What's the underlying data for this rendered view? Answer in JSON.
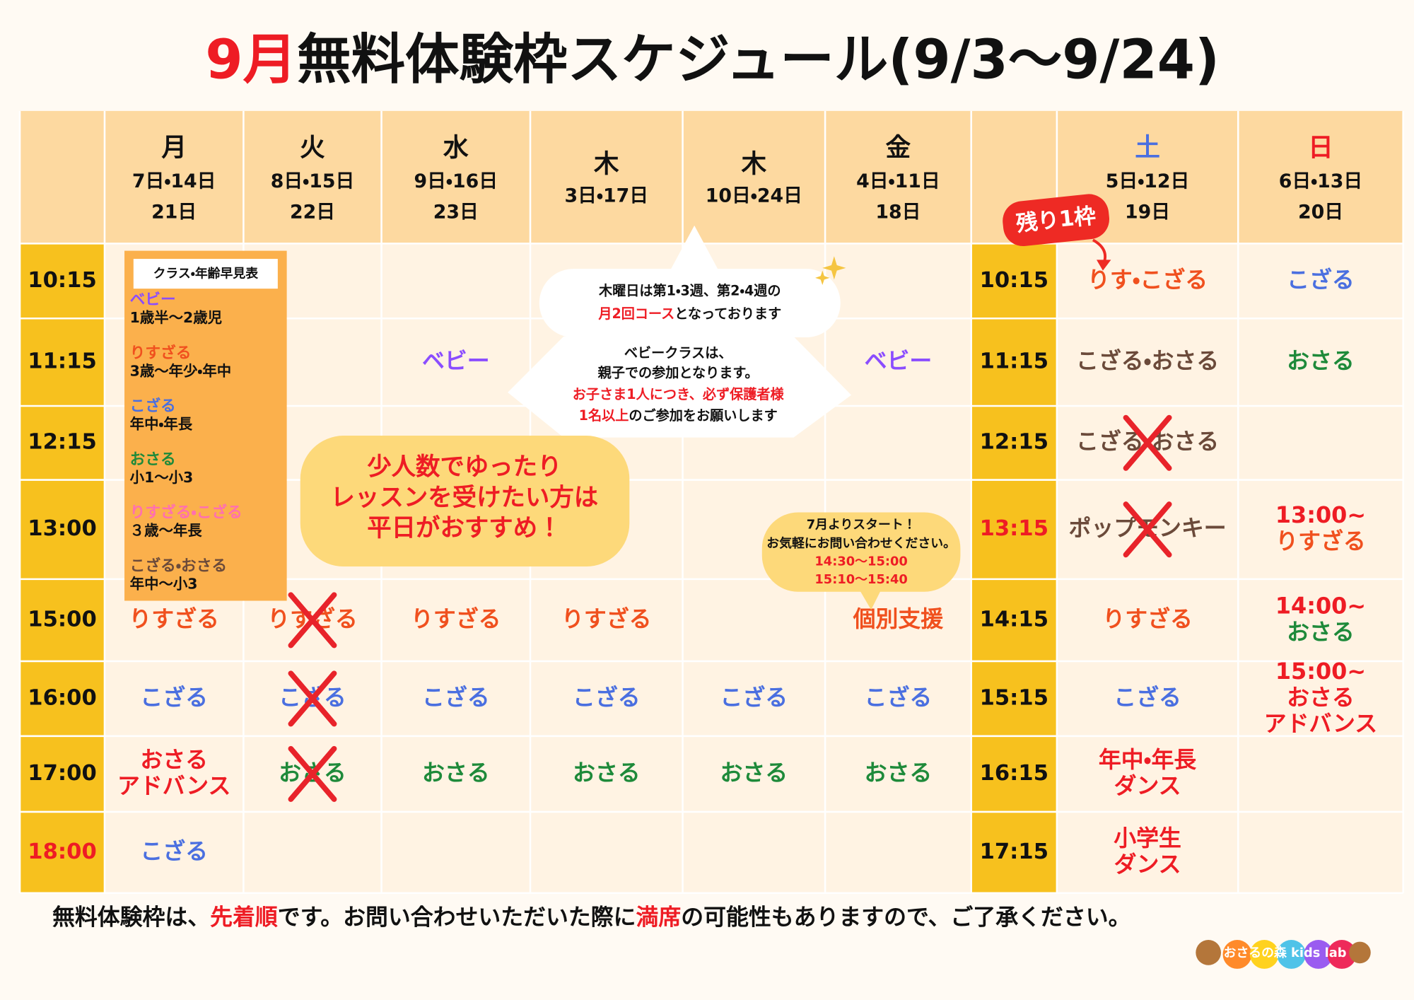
{
  "title": {
    "month": "9月",
    "rest": "無料体験枠スケジュール(9/3〜9/24)"
  },
  "days": [
    {
      "name": "月",
      "color": "#111111",
      "dates": [
        "7日・14日",
        "21日"
      ]
    },
    {
      "name": "火",
      "color": "#111111",
      "dates": [
        "8日・15日",
        "22日"
      ]
    },
    {
      "name": "水",
      "color": "#111111",
      "dates": [
        "9日・16日",
        "23日"
      ]
    },
    {
      "name": "木",
      "color": "#111111",
      "dates": [
        "3日・17日"
      ]
    },
    {
      "name": "木",
      "color": "#111111",
      "dates": [
        "10日・24日"
      ]
    },
    {
      "name": "金",
      "color": "#111111",
      "dates": [
        "4日・11日",
        "18日"
      ]
    },
    {
      "name": "土",
      "color": "#4a6fe0",
      "dates": [
        "5日・12日",
        "19日"
      ]
    },
    {
      "name": "日",
      "color": "#ee1c24",
      "dates": [
        "6日・13日",
        "20日"
      ]
    }
  ],
  "rows": [
    {
      "left_time": {
        "text": "10:15",
        "color": "#111111"
      },
      "right_time": {
        "text": "10:15",
        "color": "#111111"
      },
      "cells": [
        null,
        null,
        null,
        null,
        null,
        null,
        {
          "lines": [
            {
              "text": "りす・こざる",
              "color": "#f0501e"
            }
          ],
          "cancelled": false
        },
        {
          "lines": [
            {
              "text": "こざる",
              "color": "#4a6fe0"
            }
          ],
          "cancelled": false
        }
      ]
    },
    {
      "left_time": {
        "text": "11:15",
        "color": "#111111"
      },
      "right_time": {
        "text": "11:15",
        "color": "#111111"
      },
      "cells": [
        null,
        null,
        {
          "lines": [
            {
              "text": "ベビー",
              "color": "#8b4dff"
            }
          ],
          "cancelled": false
        },
        null,
        null,
        {
          "lines": [
            {
              "text": "ベビー",
              "color": "#8b4dff"
            }
          ],
          "cancelled": false
        },
        {
          "lines": [
            {
              "text": "こざる・おさる",
              "color": "#6b4a3a"
            }
          ],
          "cancelled": false
        },
        {
          "lines": [
            {
              "text": "おさる",
              "color": "#1e8a3a"
            }
          ],
          "cancelled": false
        }
      ]
    },
    {
      "left_time": {
        "text": "12:15",
        "color": "#111111"
      },
      "right_time": {
        "text": "12:15",
        "color": "#111111"
      },
      "cells": [
        null,
        null,
        null,
        null,
        null,
        null,
        {
          "lines": [
            {
              "text": "こざる・おさる",
              "color": "#6b4a3a"
            }
          ],
          "cancelled": true
        },
        null
      ]
    },
    {
      "left_time": {
        "text": "13:00",
        "color": "#111111"
      },
      "right_time": {
        "text": "13:15",
        "color": "#ee1c24"
      },
      "cells": [
        null,
        null,
        null,
        null,
        null,
        null,
        {
          "lines": [
            {
              "text": "ポップモンキー",
              "color": "#6b4a3a"
            }
          ],
          "cancelled": true
        },
        {
          "lines": [
            {
              "text": "13:00~",
              "color": "#ee1c24"
            },
            {
              "text": "りすざる",
              "color": "#f0501e"
            }
          ],
          "cancelled": false
        }
      ]
    },
    {
      "left_time": {
        "text": "15:00",
        "color": "#111111"
      },
      "right_time": {
        "text": "14:15",
        "color": "#111111"
      },
      "cells": [
        {
          "lines": [
            {
              "text": "りすざる",
              "color": "#f0501e"
            }
          ],
          "cancelled": false
        },
        {
          "lines": [
            {
              "text": "りすざる",
              "color": "#f0501e"
            }
          ],
          "cancelled": true
        },
        {
          "lines": [
            {
              "text": "りすざる",
              "color": "#f0501e"
            }
          ],
          "cancelled": false
        },
        {
          "lines": [
            {
              "text": "りすざる",
              "color": "#f0501e"
            }
          ],
          "cancelled": false
        },
        null,
        {
          "lines": [
            {
              "text": "個別支援",
              "color": "#f0501e"
            }
          ],
          "cancelled": false
        },
        {
          "lines": [
            {
              "text": "りすざる",
              "color": "#f0501e"
            }
          ],
          "cancelled": false
        },
        {
          "lines": [
            {
              "text": "14:00~",
              "color": "#ee1c24"
            },
            {
              "text": "おさる",
              "color": "#1e8a3a"
            }
          ],
          "cancelled": false
        }
      ]
    },
    {
      "left_time": {
        "text": "16:00",
        "color": "#111111"
      },
      "right_time": {
        "text": "15:15",
        "color": "#111111"
      },
      "cells": [
        {
          "lines": [
            {
              "text": "こざる",
              "color": "#4a6fe0"
            }
          ],
          "cancelled": false
        },
        {
          "lines": [
            {
              "text": "こざる",
              "color": "#4a6fe0"
            }
          ],
          "cancelled": true
        },
        {
          "lines": [
            {
              "text": "こざる",
              "color": "#4a6fe0"
            }
          ],
          "cancelled": false
        },
        {
          "lines": [
            {
              "text": "こざる",
              "color": "#4a6fe0"
            }
          ],
          "cancelled": false
        },
        {
          "lines": [
            {
              "text": "こざる",
              "color": "#4a6fe0"
            }
          ],
          "cancelled": false
        },
        {
          "lines": [
            {
              "text": "こざる",
              "color": "#4a6fe0"
            }
          ],
          "cancelled": false
        },
        {
          "lines": [
            {
              "text": "こざる",
              "color": "#4a6fe0"
            }
          ],
          "cancelled": false
        },
        {
          "lines": [
            {
              "text": "15:00~",
              "color": "#ee1c24"
            },
            {
              "text": "おさる",
              "color": "#ee1c24"
            },
            {
              "text": "アドバンス",
              "color": "#ee1c24"
            }
          ],
          "cancelled": false
        }
      ]
    },
    {
      "left_time": {
        "text": "17:00",
        "color": "#111111"
      },
      "right_time": {
        "text": "16:15",
        "color": "#111111"
      },
      "cells": [
        {
          "lines": [
            {
              "text": "おさる",
              "color": "#ee1c24"
            },
            {
              "text": "アドバンス",
              "color": "#ee1c24"
            }
          ],
          "cancelled": false
        },
        {
          "lines": [
            {
              "text": "おさる",
              "color": "#1e8a3a"
            }
          ],
          "cancelled": true
        },
        {
          "lines": [
            {
              "text": "おさる",
              "color": "#1e8a3a"
            }
          ],
          "cancelled": false
        },
        {
          "lines": [
            {
              "text": "おさる",
              "color": "#1e8a3a"
            }
          ],
          "cancelled": false
        },
        {
          "lines": [
            {
              "text": "おさる",
              "color": "#1e8a3a"
            }
          ],
          "cancelled": false
        },
        {
          "lines": [
            {
              "text": "おさる",
              "color": "#1e8a3a"
            }
          ],
          "cancelled": false
        },
        {
          "lines": [
            {
              "text": "年中・年長",
              "color": "#ee1c24"
            },
            {
              "text": "ダンス",
              "color": "#ee1c24"
            }
          ],
          "cancelled": false
        },
        null
      ]
    },
    {
      "left_time": {
        "text": "18:00",
        "color": "#ee1c24"
      },
      "right_time": {
        "text": "17:15",
        "color": "#111111"
      },
      "cells": [
        {
          "lines": [
            {
              "text": "こざる",
              "color": "#4a6fe0"
            }
          ],
          "cancelled": false
        },
        null,
        null,
        null,
        null,
        null,
        {
          "lines": [
            {
              "text": "小学生",
              "color": "#ee1c24"
            },
            {
              "text": "ダンス",
              "color": "#ee1c24"
            }
          ],
          "cancelled": false
        },
        null
      ]
    }
  ],
  "legend": {
    "title": "クラス・年齢早見表",
    "entries": [
      {
        "name": "ベビー",
        "color": "#8b4dff",
        "ages": "1歳半〜2歳児"
      },
      {
        "name": "りすざる",
        "color": "#f0501e",
        "ages": "3歳〜年少・年中"
      },
      {
        "name": "こざる",
        "color": "#4a6fe0",
        "ages": "年中・年長"
      },
      {
        "name": "おさる",
        "color": "#1e8a3a",
        "ages": "小1〜小3"
      },
      {
        "name": "りすざる・こざる",
        "color": "#ff6fb0",
        "ages": "３歳〜年長"
      },
      {
        "name": "こざる・おさる",
        "color": "#6b4a3a",
        "ages": "年中〜小3"
      }
    ]
  },
  "badge": "残り1枠",
  "notes": {
    "thursday": [
      "木曜日は第1・3週、第2・4週の",
      "月2回コース",
      "となっております"
    ],
    "baby": [
      "ベビークラスは、",
      "親子での参加となります。",
      "お子さま1人につき、必ず保護者様",
      "1名以上",
      "のご参加をお願いします"
    ],
    "weekday": [
      "少人数でゆったり",
      "レッスンを受けたい方は",
      "平日がおすすめ！"
    ],
    "support": [
      "7月よりスタート！",
      "お気軽にお問い合わせください。",
      "14:30〜15:00",
      "15:10〜15:40"
    ]
  },
  "footer": [
    "無料体験枠は、",
    "先着順",
    "です。お問い合わせいただいた際に",
    "満席",
    "の可能性もありますので、ご了承ください。"
  ],
  "logo": "おさるの森 kids lab"
}
